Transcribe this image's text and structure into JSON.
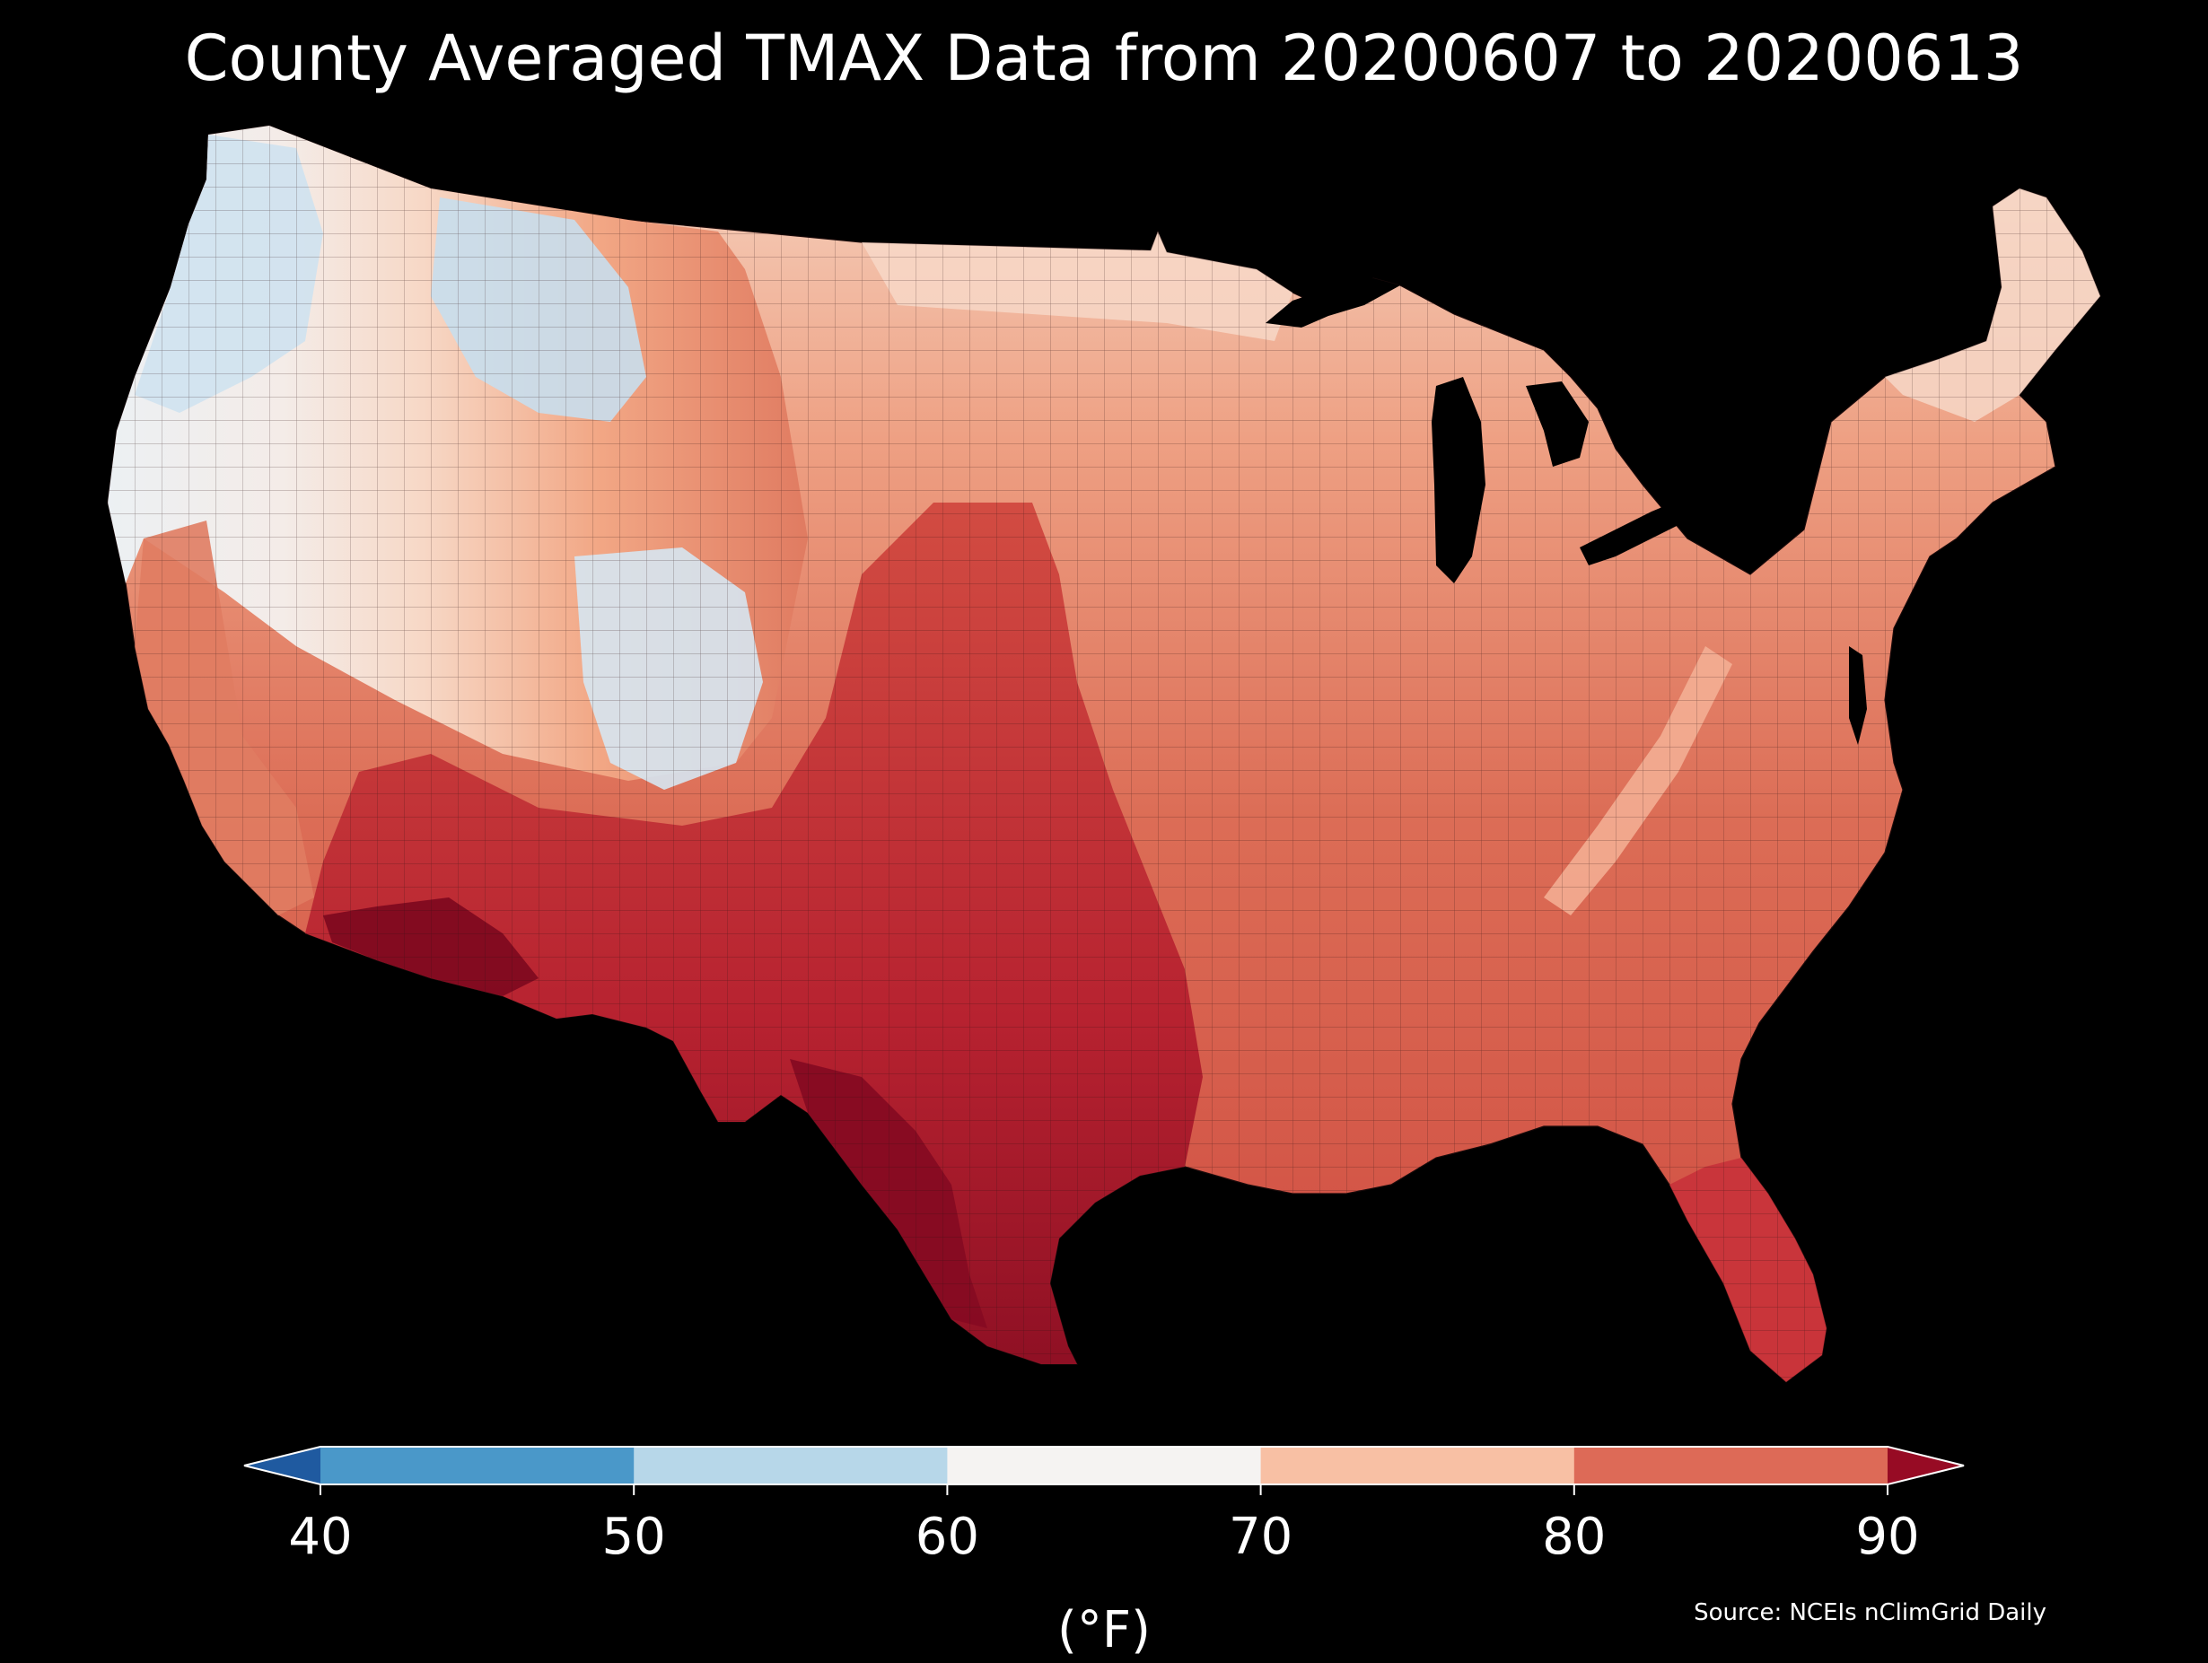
{
  "title": "County Averaged TMAX Data from 20200607 to 20200613",
  "map": {
    "region": "Contiguous United States",
    "variable": "TMAX",
    "levels": [
      {
        "min": null,
        "max": 40,
        "color": "#1f5aa0"
      },
      {
        "min": 40,
        "max": 50,
        "color": "#4a98c9"
      },
      {
        "min": 50,
        "max": 60,
        "color": "#b7d7e9"
      },
      {
        "min": 60,
        "max": 70,
        "color": "#f5f3f2"
      },
      {
        "min": 70,
        "max": 80,
        "color": "#f8c0a4"
      },
      {
        "min": 80,
        "max": 90,
        "color": "#dd6a57"
      },
      {
        "min": 90,
        "max": null,
        "color": "#970b24"
      }
    ]
  },
  "colorbar": {
    "ticks": [
      "40",
      "50",
      "60",
      "70",
      "80",
      "90"
    ],
    "unit": "(°F)",
    "extend": "both"
  },
  "source": "Source: NCEIs nClimGrid Daily"
}
